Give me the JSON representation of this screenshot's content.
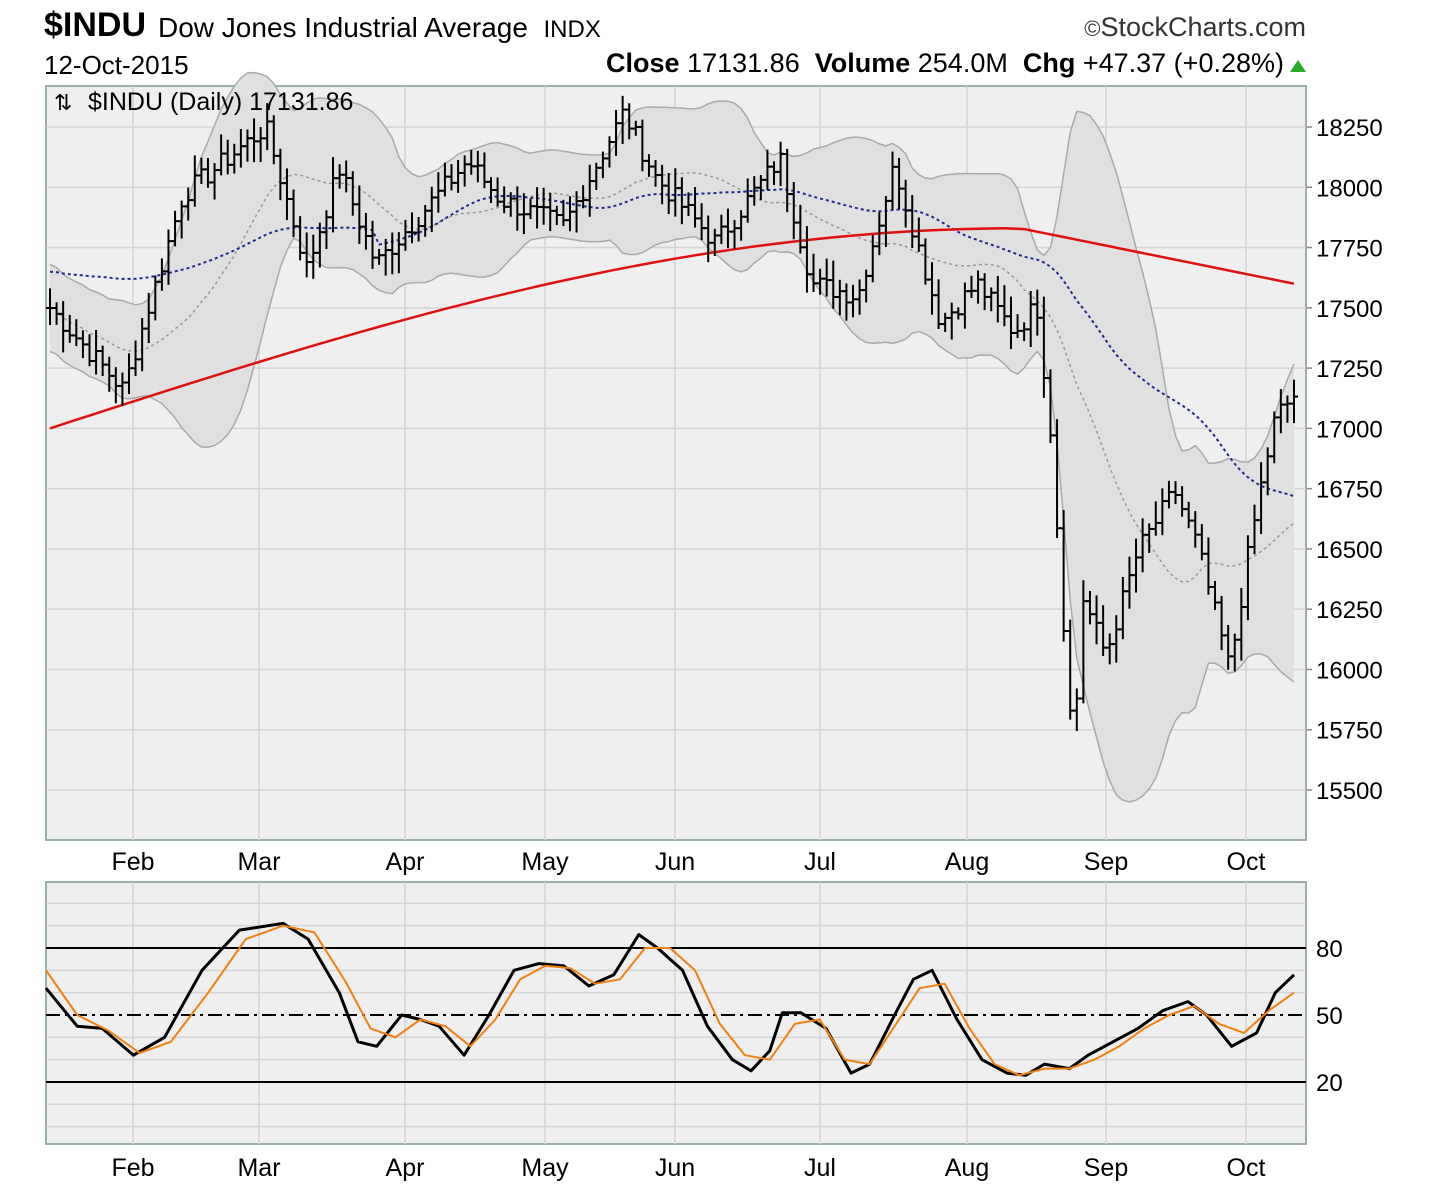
{
  "header": {
    "symbol": "$INDU",
    "name": "Dow Jones Industrial Average",
    "exchange": "INDX",
    "source": "StockCharts.com",
    "date": "12-Oct-2015",
    "close_label": "Close",
    "close_value": "17131.86",
    "volume_label": "Volume",
    "volume_value": "254.0M",
    "chg_label": "Chg",
    "chg_value": "+47.37 (+0.28%)"
  },
  "colors": {
    "up_arrow": "#2aaa2a",
    "ma200": "#e01010",
    "ma50": "#1f2a8c",
    "ma20": "#999999",
    "band_fill": "#e0e0e0",
    "panel_bg": "#efefef",
    "stoch_k": "#000000",
    "stoch_d": "#f08010"
  },
  "chart_data": [
    {
      "type": "ohlc",
      "legend": "$INDU (Daily) 17131.86",
      "legend_icon": "up-down-arrows-icon",
      "x_labels": [
        "Feb",
        "Mar",
        "Apr",
        "May",
        "Jun",
        "Jul",
        "Aug",
        "Sep",
        "Oct"
      ],
      "ylim": [
        15300,
        18450
      ],
      "yticks": [
        15500,
        15750,
        16000,
        16250,
        16500,
        16750,
        17000,
        17250,
        17500,
        17750,
        18000,
        18250
      ],
      "grid": true,
      "overlays": [
        "200-day MA (red)",
        "50-day MA (blue dotted)",
        "Bollinger Bands (gray)"
      ],
      "keypoints": [
        {
          "date": "2015-01-14",
          "close": 17500
        },
        {
          "date": "2015-01-30",
          "close": 17160
        },
        {
          "date": "2015-02-12",
          "close": 17970
        },
        {
          "date": "2015-03-02",
          "close": 18250
        },
        {
          "date": "2015-03-11",
          "close": 17660
        },
        {
          "date": "2015-03-18",
          "close": 18080
        },
        {
          "date": "2015-03-26",
          "close": 17680
        },
        {
          "date": "2015-04-15",
          "close": 18110
        },
        {
          "date": "2015-04-22",
          "close": 17950
        },
        {
          "date": "2015-05-06",
          "close": 17840
        },
        {
          "date": "2015-05-19",
          "close": 18310
        },
        {
          "date": "2015-05-26",
          "close": 18040
        },
        {
          "date": "2015-06-08",
          "close": 17770
        },
        {
          "date": "2015-06-22",
          "close": 18120
        },
        {
          "date": "2015-06-29",
          "close": 17600
        },
        {
          "date": "2015-07-09",
          "close": 17550
        },
        {
          "date": "2015-07-17",
          "close": 18090
        },
        {
          "date": "2015-07-27",
          "close": 17440
        },
        {
          "date": "2015-08-04",
          "close": 17600
        },
        {
          "date": "2015-08-12",
          "close": 17400
        },
        {
          "date": "2015-08-17",
          "close": 17510
        },
        {
          "date": "2015-08-20",
          "close": 16990
        },
        {
          "date": "2015-08-24",
          "close": 15870
        },
        {
          "date": "2015-08-25",
          "close": 15670
        },
        {
          "date": "2015-08-27",
          "close": 16300
        },
        {
          "date": "2015-09-01",
          "close": 16060
        },
        {
          "date": "2015-09-08",
          "close": 16490
        },
        {
          "date": "2015-09-16",
          "close": 16740
        },
        {
          "date": "2015-09-21",
          "close": 16510
        },
        {
          "date": "2015-09-28",
          "close": 16000
        },
        {
          "date": "2015-10-02",
          "close": 16470
        },
        {
          "date": "2015-10-05",
          "close": 16780
        },
        {
          "date": "2015-10-08",
          "close": 17050
        },
        {
          "date": "2015-10-12",
          "close": 17131.86
        }
      ]
    },
    {
      "type": "line",
      "indicator": "Slow Stochastic",
      "yticks": [
        20,
        50,
        80
      ],
      "ylim": [
        0,
        100
      ],
      "series": [
        {
          "color": "black",
          "values": [
            [
              0,
              62
            ],
            [
              0.05,
              45
            ],
            [
              0.09,
              44
            ],
            [
              0.14,
              32
            ],
            [
              0.19,
              40
            ],
            [
              0.25,
              70
            ],
            [
              0.31,
              88
            ],
            [
              0.38,
              91
            ],
            [
              0.42,
              84
            ],
            [
              0.47,
              60
            ],
            [
              0.5,
              38
            ],
            [
              0.53,
              36
            ],
            [
              0.57,
              50
            ],
            [
              0.6,
              48
            ],
            [
              0.63,
              45
            ],
            [
              0.67,
              32
            ],
            [
              0.71,
              50
            ],
            [
              0.75,
              70
            ],
            [
              0.79,
              73
            ],
            [
              0.83,
              72
            ],
            [
              0.87,
              63
            ],
            [
              0.91,
              68
            ],
            [
              0.95,
              86
            ],
            [
              0.98,
              80
            ],
            [
              1.02,
              70
            ],
            [
              1.06,
              45
            ],
            [
              1.1,
              30
            ],
            [
              1.13,
              25
            ],
            [
              1.16,
              34
            ],
            [
              1.18,
              51
            ],
            [
              1.21,
              51
            ],
            [
              1.25,
              44
            ],
            [
              1.29,
              24
            ],
            [
              1.32,
              28
            ],
            [
              1.36,
              50
            ],
            [
              1.39,
              66
            ],
            [
              1.42,
              70
            ],
            [
              1.46,
              48
            ],
            [
              1.5,
              30
            ],
            [
              1.54,
              24
            ],
            [
              1.57,
              23
            ],
            [
              1.6,
              28
            ],
            [
              1.64,
              26
            ],
            [
              1.67,
              32
            ],
            [
              1.71,
              38
            ],
            [
              1.75,
              44
            ],
            [
              1.79,
              52
            ],
            [
              1.83,
              56
            ],
            [
              1.86,
              50
            ],
            [
              1.9,
              36
            ],
            [
              1.94,
              42
            ],
            [
              1.97,
              60
            ],
            [
              2.0,
              68
            ]
          ]
        },
        {
          "color": "orange",
          "values": [
            [
              0,
              70
            ],
            [
              0.05,
              50
            ],
            [
              0.1,
              43
            ],
            [
              0.15,
              33
            ],
            [
              0.2,
              38
            ],
            [
              0.26,
              60
            ],
            [
              0.32,
              84
            ],
            [
              0.38,
              90
            ],
            [
              0.43,
              87
            ],
            [
              0.48,
              65
            ],
            [
              0.52,
              44
            ],
            [
              0.56,
              40
            ],
            [
              0.6,
              48
            ],
            [
              0.64,
              45
            ],
            [
              0.68,
              36
            ],
            [
              0.72,
              48
            ],
            [
              0.76,
              66
            ],
            [
              0.8,
              72
            ],
            [
              0.84,
              71
            ],
            [
              0.88,
              64
            ],
            [
              0.92,
              66
            ],
            [
              0.96,
              80
            ],
            [
              1.0,
              80
            ],
            [
              1.04,
              70
            ],
            [
              1.08,
              46
            ],
            [
              1.12,
              32
            ],
            [
              1.16,
              30
            ],
            [
              1.2,
              46
            ],
            [
              1.24,
              48
            ],
            [
              1.28,
              30
            ],
            [
              1.32,
              28
            ],
            [
              1.36,
              45
            ],
            [
              1.4,
              62
            ],
            [
              1.44,
              64
            ],
            [
              1.48,
              44
            ],
            [
              1.52,
              28
            ],
            [
              1.56,
              23
            ],
            [
              1.6,
              26
            ],
            [
              1.64,
              26
            ],
            [
              1.68,
              30
            ],
            [
              1.72,
              36
            ],
            [
              1.76,
              44
            ],
            [
              1.8,
              50
            ],
            [
              1.84,
              54
            ],
            [
              1.88,
              46
            ],
            [
              1.92,
              42
            ],
            [
              1.96,
              52
            ],
            [
              2.0,
              60
            ]
          ]
        }
      ]
    }
  ]
}
